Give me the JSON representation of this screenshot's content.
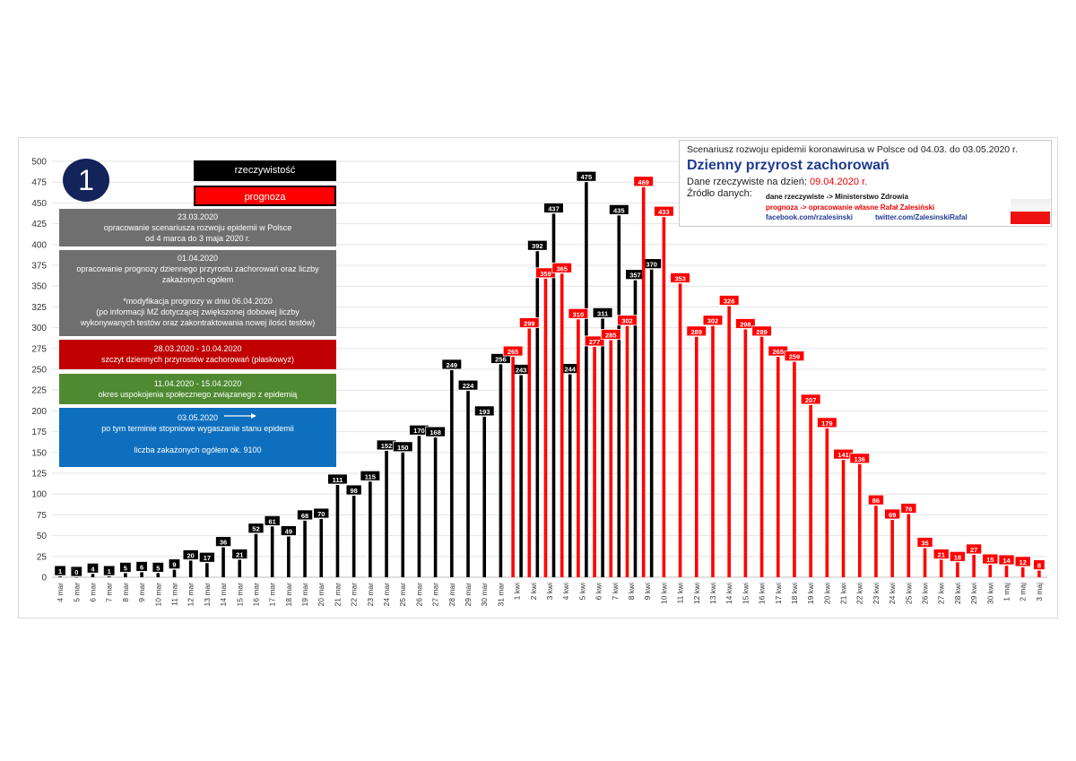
{
  "badge": "1",
  "legend": {
    "actual": "rzeczywistość",
    "forecast": "prognoza"
  },
  "colors": {
    "actual": "#000000",
    "forecast": "#ff0000",
    "gray": "#6f6f6f",
    "darkred": "#c00000",
    "green": "#4f8a32",
    "blue": "#0e6fbf",
    "badge": "#12245a"
  },
  "notes": [
    {
      "id": "note1",
      "color": "gray",
      "text": "23.03.2020\nopracowanie scenariusza rozwoju epidemii w Polsce\nod 4 marca do 3 maja 2020 r."
    },
    {
      "id": "note2",
      "color": "gray",
      "text": "01.04.2020\nopracowanie prognozy dziennego przyrostu zachorowań oraz liczby\nzakażonych ogółem\n\n*modyfikacja prognozy w dniu 06.04.2020\n(po informacji MZ dotyczącej zwiększonej dobowej liczby\nwykonywanych testów oraz zakontraktowania nowej ilości testów)"
    },
    {
      "id": "note3",
      "color": "darkred",
      "text": "28.03.2020 - 10.04.2020\nszczyt dziennych przyrostów zachorowań (płaskowyż)"
    },
    {
      "id": "note4",
      "color": "green",
      "text": "11.04.2020 - 15.04.2020\nokres uspokojenia społecznego związanego z epidemią"
    },
    {
      "id": "note5",
      "color": "blue",
      "text": "03.05.2020\npo tym terminie stopniowe wygaszanie stanu epidemii\n\nliczba zakażonych ogółem ok. 9100"
    }
  ],
  "info": {
    "line1": "Scenariusz rozwoju epidemii koronawirusa  w Polsce od 04.03. do 03.05.2020 r.",
    "title": "Dzienny przyrost zachorowań",
    "date_label": "Dane rzeczywiste na dzień: ",
    "date_value": "09.04.2020 r.",
    "source_label": "Źródło danych:",
    "src1": "dane rzeczywiste -> Ministerstwo Zdrowia",
    "src2": "prognoza -> opracowanie własne Rafał Zalesiński",
    "fb": "facebook.com/rzalesinski",
    "tw": "twitter.com/ZalesinskiRafal"
  },
  "chart_data": {
    "type": "bar",
    "ylim": [
      0,
      500
    ],
    "ytick_step": 25,
    "grid": true,
    "categories": [
      "4 mar",
      "5 mar",
      "6 mar",
      "7 mar",
      "8 mar",
      "9 mar",
      "10 mar",
      "11 mar",
      "12 mar",
      "13 mar",
      "14 mar",
      "15 mar",
      "16 mar",
      "17 mar",
      "18 mar",
      "19 mar",
      "20 mar",
      "21 mar",
      "22 mar",
      "23 mar",
      "24 mar",
      "25 mar",
      "26 mar",
      "27 mar",
      "28 mar",
      "29 mar",
      "30 mar",
      "31 mar",
      "1 kwi",
      "2 kwi",
      "3 kwi",
      "4 kwi",
      "5 kwi",
      "6 kwi",
      "7 kwi",
      "8 kwi",
      "9 kwi",
      "10 kwi",
      "11 kwi",
      "12 kwi",
      "13 kwi",
      "14 kwi",
      "15 kwi",
      "16 kwi",
      "17 kwi",
      "18 kwi",
      "19 kwi",
      "20 kwi",
      "21 kwi",
      "22 kwi",
      "23 kwi",
      "24 kwi",
      "25 kwi",
      "26 kwi",
      "27 kwi",
      "28 kwi",
      "29 kwi",
      "30 kwi",
      "1 maj",
      "2 maj",
      "3 maj"
    ],
    "series": [
      {
        "name": "rzeczywistość",
        "values": [
          1,
          0,
          4,
          1,
          5,
          6,
          5,
          9,
          20,
          17,
          36,
          21,
          52,
          61,
          49,
          68,
          70,
          111,
          98,
          115,
          152,
          150,
          170,
          168,
          249,
          224,
          193,
          256,
          243,
          392,
          437,
          244,
          475,
          311,
          435,
          357,
          370,
          null,
          null,
          null,
          null,
          null,
          null,
          null,
          null,
          null,
          null,
          null,
          null,
          null,
          null,
          null,
          null,
          null,
          null,
          null,
          null,
          null,
          null,
          null,
          null
        ]
      },
      {
        "name": "prognoza",
        "values": [
          null,
          null,
          null,
          null,
          null,
          null,
          null,
          null,
          null,
          null,
          null,
          null,
          null,
          null,
          null,
          null,
          null,
          null,
          null,
          null,
          null,
          null,
          null,
          null,
          null,
          null,
          null,
          null,
          265,
          299,
          359,
          365,
          310,
          277,
          285,
          302,
          469,
          433,
          353,
          289,
          302,
          326,
          298,
          289,
          265,
          259,
          207,
          179,
          141,
          136,
          86,
          69,
          76,
          35,
          21,
          18,
          27,
          15,
          14,
          12,
          8
        ]
      }
    ]
  }
}
